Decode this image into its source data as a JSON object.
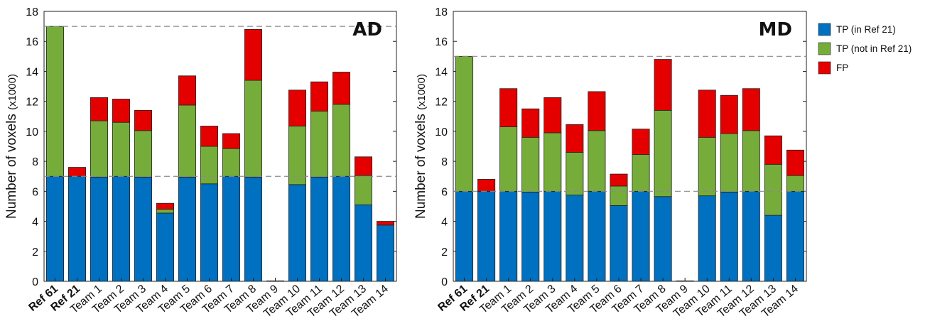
{
  "chart_data": [
    {
      "type": "bar",
      "stacked": true,
      "panel_label": "AD",
      "ylabel": "Number of voxels",
      "ylabel_unit": "(x1000)",
      "ylim": [
        0,
        18
      ],
      "yticks": [
        "0",
        "2",
        "4",
        "6",
        "8",
        "10",
        "12",
        "14",
        "16",
        "18"
      ],
      "reference_lines": [
        7,
        17
      ],
      "categories": [
        "Ref 61",
        "Ref 21",
        "Team 1",
        "Team 2",
        "Team 3",
        "Team 4",
        "Team 5",
        "Team 6",
        "Team 7",
        "Team 8",
        "Team 9",
        "Team 10",
        "Team 11",
        "Team 12",
        "Team 13",
        "Team 14"
      ],
      "bold_categories": [
        "Ref 61",
        "Ref 21"
      ],
      "series": [
        {
          "name": "TP (in Ref 21)",
          "values": [
            7.0,
            7.0,
            6.95,
            7.0,
            6.95,
            4.55,
            6.95,
            6.5,
            7.0,
            6.95,
            0,
            6.45,
            6.95,
            7.0,
            5.1,
            3.75
          ]
        },
        {
          "name": "TP (not in Ref 21)",
          "values": [
            10.0,
            0,
            3.75,
            3.6,
            3.1,
            0.25,
            4.8,
            2.5,
            1.85,
            6.45,
            0,
            3.9,
            4.4,
            4.8,
            1.95,
            0
          ]
        },
        {
          "name": "FP",
          "values": [
            0,
            0.6,
            1.55,
            1.55,
            1.35,
            0.4,
            1.95,
            1.35,
            1.0,
            3.4,
            0.03,
            2.4,
            1.95,
            2.15,
            1.25,
            0.25
          ]
        }
      ]
    },
    {
      "type": "bar",
      "stacked": true,
      "panel_label": "MD",
      "ylabel": "Number of voxels",
      "ylabel_unit": "(x1000)",
      "ylim": [
        0,
        18
      ],
      "yticks": [
        "0",
        "2",
        "4",
        "6",
        "8",
        "10",
        "12",
        "14",
        "16",
        "18"
      ],
      "reference_lines": [
        6,
        15
      ],
      "categories": [
        "Ref 61",
        "Ref 21",
        "Team 1",
        "Team 2",
        "Team 3",
        "Team 4",
        "Team 5",
        "Team 6",
        "Team 7",
        "Team 8",
        "Team 9",
        "Team 10",
        "Team 11",
        "Team 12",
        "Team 13",
        "Team 14"
      ],
      "bold_categories": [
        "Ref 61",
        "Ref 21"
      ],
      "series": [
        {
          "name": "TP (in Ref 21)",
          "values": [
            6.0,
            6.0,
            6.0,
            5.95,
            6.0,
            5.75,
            6.0,
            5.05,
            6.0,
            5.65,
            0,
            5.7,
            5.95,
            6.0,
            4.4,
            6.0
          ]
        },
        {
          "name": "TP (not in Ref 21)",
          "values": [
            9.0,
            0,
            4.3,
            3.65,
            3.9,
            2.85,
            4.05,
            1.3,
            2.45,
            5.75,
            0,
            3.9,
            3.9,
            4.05,
            3.4,
            1.05
          ]
        },
        {
          "name": "FP",
          "values": [
            0,
            0.8,
            2.55,
            1.9,
            2.35,
            1.85,
            2.6,
            0.8,
            1.7,
            3.4,
            0.03,
            3.15,
            2.55,
            2.8,
            1.9,
            1.7
          ]
        }
      ]
    }
  ],
  "legend": {
    "placement": "right",
    "items": [
      {
        "label": "TP (in Ref 21)",
        "color": "#0070C0"
      },
      {
        "label": "TP (not in Ref 21)",
        "color": "#76AD3A"
      },
      {
        "label": "FP",
        "color": "#E50000"
      }
    ]
  },
  "colors": {
    "tp_in_ref": "#0070C0",
    "tp_not_in_ref": "#76AD3A",
    "fp": "#E50000",
    "reference_line": "#8a8a8a"
  }
}
